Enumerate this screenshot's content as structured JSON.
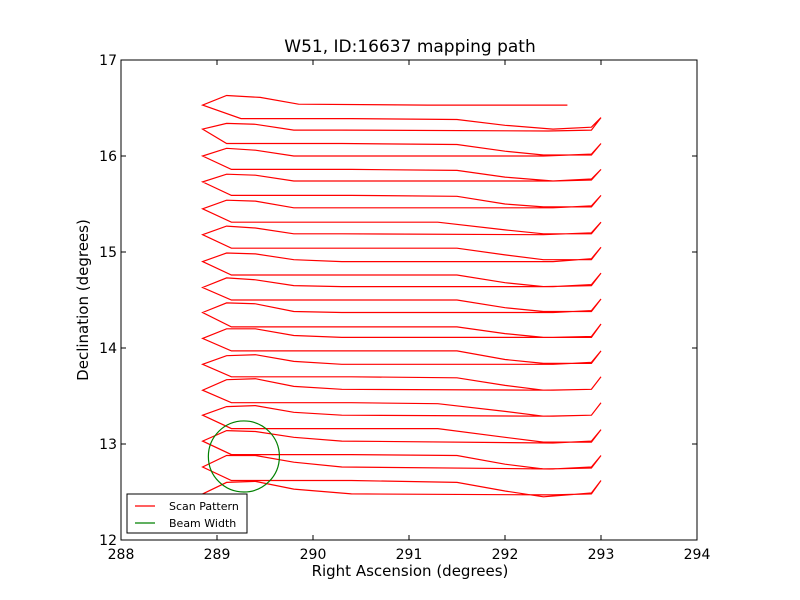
{
  "chart_data": {
    "type": "line",
    "title": "W51, ID:16637 mapping path",
    "xlabel": "Right Ascension (degrees)",
    "ylabel": "Declination (degrees)",
    "xlim": [
      288,
      294
    ],
    "ylim": [
      12,
      17
    ],
    "xticks": [
      288,
      289,
      290,
      291,
      292,
      293,
      294
    ],
    "yticks": [
      12,
      13,
      14,
      15,
      16,
      17
    ],
    "xtick_labels": [
      "288",
      "289",
      "290",
      "291",
      "292",
      "293",
      "294"
    ],
    "ytick_labels": [
      "12",
      "13",
      "14",
      "15",
      "16",
      "17"
    ],
    "grid": false,
    "legend": {
      "placement": "lower-left",
      "entries": [
        {
          "label": "Scan Pattern",
          "color": "#ff0000"
        },
        {
          "label": "Beam Width",
          "color": "#008000"
        }
      ]
    },
    "series": [
      {
        "name": "Scan Pattern",
        "color": "#ff0000",
        "points": [
          [
            292.65,
            16.53
          ],
          [
            291.2,
            16.53
          ],
          [
            289.85,
            16.54
          ],
          [
            289.45,
            16.61
          ],
          [
            289.1,
            16.63
          ],
          [
            288.85,
            16.53
          ],
          [
            289.25,
            16.39
          ],
          [
            290.4,
            16.39
          ],
          [
            291.5,
            16.38
          ],
          [
            292.0,
            16.32
          ],
          [
            292.5,
            16.28
          ],
          [
            292.9,
            16.3
          ],
          [
            293.0,
            16.4
          ],
          [
            292.9,
            16.27
          ],
          [
            292.45,
            16.26
          ],
          [
            290.3,
            16.27
          ],
          [
            289.8,
            16.27
          ],
          [
            289.4,
            16.33
          ],
          [
            289.1,
            16.34
          ],
          [
            288.85,
            16.28
          ],
          [
            289.1,
            16.13
          ],
          [
            290.3,
            16.13
          ],
          [
            291.5,
            16.12
          ],
          [
            292.0,
            16.05
          ],
          [
            292.4,
            16.01
          ],
          [
            292.9,
            16.01
          ],
          [
            293.0,
            16.13
          ],
          [
            292.9,
            16.02
          ],
          [
            292.4,
            16.0
          ],
          [
            290.2,
            16.0
          ],
          [
            289.8,
            16.0
          ],
          [
            289.4,
            16.06
          ],
          [
            289.1,
            16.08
          ],
          [
            288.85,
            16.0
          ],
          [
            289.15,
            15.86
          ],
          [
            290.4,
            15.86
          ],
          [
            291.5,
            15.85
          ],
          [
            292.0,
            15.78
          ],
          [
            292.5,
            15.74
          ],
          [
            292.9,
            15.75
          ],
          [
            293.0,
            15.86
          ],
          [
            292.9,
            15.76
          ],
          [
            292.5,
            15.74
          ],
          [
            290.3,
            15.74
          ],
          [
            289.8,
            15.74
          ],
          [
            289.4,
            15.8
          ],
          [
            289.1,
            15.81
          ],
          [
            288.85,
            15.73
          ],
          [
            289.15,
            15.59
          ],
          [
            290.4,
            15.59
          ],
          [
            291.5,
            15.58
          ],
          [
            292.0,
            15.5
          ],
          [
            292.4,
            15.47
          ],
          [
            292.9,
            15.47
          ],
          [
            293.0,
            15.59
          ],
          [
            292.9,
            15.48
          ],
          [
            292.5,
            15.46
          ],
          [
            290.3,
            15.46
          ],
          [
            289.8,
            15.46
          ],
          [
            289.4,
            15.53
          ],
          [
            289.1,
            15.54
          ],
          [
            288.85,
            15.45
          ],
          [
            289.15,
            15.31
          ],
          [
            290.4,
            15.31
          ],
          [
            291.3,
            15.31
          ],
          [
            292.0,
            15.23
          ],
          [
            292.4,
            15.19
          ],
          [
            292.9,
            15.19
          ],
          [
            293.0,
            15.31
          ],
          [
            292.9,
            15.2
          ],
          [
            292.4,
            15.18
          ],
          [
            290.3,
            15.19
          ],
          [
            289.8,
            15.19
          ],
          [
            289.4,
            15.25
          ],
          [
            289.1,
            15.27
          ],
          [
            288.85,
            15.18
          ],
          [
            289.15,
            15.04
          ],
          [
            290.4,
            15.04
          ],
          [
            291.5,
            15.04
          ],
          [
            292.0,
            14.97
          ],
          [
            292.4,
            14.92
          ],
          [
            292.9,
            14.92
          ],
          [
            293.0,
            15.05
          ],
          [
            292.9,
            14.93
          ],
          [
            292.5,
            14.9
          ],
          [
            290.3,
            14.9
          ],
          [
            289.8,
            14.92
          ],
          [
            289.4,
            14.98
          ],
          [
            289.1,
            14.99
          ],
          [
            288.85,
            14.9
          ],
          [
            289.15,
            14.76
          ],
          [
            290.4,
            14.76
          ],
          [
            291.5,
            14.76
          ],
          [
            292.0,
            14.68
          ],
          [
            292.4,
            14.64
          ],
          [
            292.9,
            14.65
          ],
          [
            293.0,
            14.78
          ],
          [
            292.9,
            14.66
          ],
          [
            292.5,
            14.64
          ],
          [
            290.3,
            14.64
          ],
          [
            289.8,
            14.65
          ],
          [
            289.4,
            14.71
          ],
          [
            289.1,
            14.73
          ],
          [
            288.85,
            14.63
          ],
          [
            289.15,
            14.5
          ],
          [
            290.4,
            14.5
          ],
          [
            291.5,
            14.5
          ],
          [
            292.0,
            14.42
          ],
          [
            292.4,
            14.38
          ],
          [
            292.9,
            14.38
          ],
          [
            293.0,
            14.51
          ],
          [
            292.9,
            14.39
          ],
          [
            292.5,
            14.37
          ],
          [
            290.3,
            14.37
          ],
          [
            289.8,
            14.38
          ],
          [
            289.4,
            14.46
          ],
          [
            289.1,
            14.47
          ],
          [
            288.85,
            14.37
          ],
          [
            289.15,
            14.22
          ],
          [
            290.4,
            14.22
          ],
          [
            291.5,
            14.22
          ],
          [
            292.0,
            14.15
          ],
          [
            292.4,
            14.11
          ],
          [
            292.9,
            14.11
          ],
          [
            293.0,
            14.25
          ],
          [
            292.9,
            14.12
          ],
          [
            292.5,
            14.11
          ],
          [
            290.3,
            14.11
          ],
          [
            289.8,
            14.13
          ],
          [
            289.4,
            14.2
          ],
          [
            289.1,
            14.2
          ],
          [
            288.85,
            14.1
          ],
          [
            289.15,
            13.97
          ],
          [
            290.4,
            13.97
          ],
          [
            291.5,
            13.97
          ],
          [
            292.0,
            13.88
          ],
          [
            292.4,
            13.84
          ],
          [
            292.9,
            13.84
          ],
          [
            293.0,
            13.97
          ],
          [
            292.9,
            13.85
          ],
          [
            292.5,
            13.83
          ],
          [
            290.3,
            13.83
          ],
          [
            289.8,
            13.86
          ],
          [
            289.4,
            13.93
          ],
          [
            289.1,
            13.92
          ],
          [
            288.85,
            13.83
          ],
          [
            289.15,
            13.7
          ],
          [
            290.4,
            13.7
          ],
          [
            291.5,
            13.69
          ],
          [
            292.0,
            13.61
          ],
          [
            292.4,
            13.56
          ],
          [
            292.9,
            13.57
          ],
          [
            293.0,
            13.7
          ],
          [
            292.9,
            13.57
          ],
          [
            292.5,
            13.56
          ],
          [
            290.3,
            13.57
          ],
          [
            289.8,
            13.6
          ],
          [
            289.4,
            13.68
          ],
          [
            289.1,
            13.67
          ],
          [
            288.85,
            13.56
          ],
          [
            289.15,
            13.43
          ],
          [
            290.4,
            13.43
          ],
          [
            291.3,
            13.42
          ],
          [
            292.0,
            13.34
          ],
          [
            292.4,
            13.29
          ],
          [
            292.9,
            13.3
          ],
          [
            293.0,
            13.43
          ],
          [
            292.9,
            13.3
          ],
          [
            292.5,
            13.29
          ],
          [
            290.3,
            13.3
          ],
          [
            289.8,
            13.33
          ],
          [
            289.4,
            13.4
          ],
          [
            289.1,
            13.39
          ],
          [
            288.85,
            13.3
          ],
          [
            289.15,
            13.16
          ],
          [
            290.4,
            13.16
          ],
          [
            291.3,
            13.16
          ],
          [
            292.0,
            13.07
          ],
          [
            292.4,
            13.02
          ],
          [
            292.9,
            13.02
          ],
          [
            293.0,
            13.15
          ],
          [
            292.9,
            13.03
          ],
          [
            292.5,
            13.01
          ],
          [
            290.3,
            13.03
          ],
          [
            289.8,
            13.07
          ],
          [
            289.4,
            13.13
          ],
          [
            289.1,
            13.14
          ],
          [
            288.85,
            13.03
          ],
          [
            289.15,
            12.89
          ],
          [
            290.4,
            12.89
          ],
          [
            291.5,
            12.88
          ],
          [
            292.0,
            12.79
          ],
          [
            292.4,
            12.74
          ],
          [
            292.9,
            12.75
          ],
          [
            293.0,
            12.88
          ],
          [
            292.9,
            12.76
          ],
          [
            292.5,
            12.74
          ],
          [
            290.3,
            12.76
          ],
          [
            289.8,
            12.81
          ],
          [
            289.4,
            12.88
          ],
          [
            289.1,
            12.88
          ],
          [
            288.85,
            12.76
          ],
          [
            289.15,
            12.62
          ],
          [
            290.4,
            12.62
          ],
          [
            291.5,
            12.6
          ],
          [
            292.0,
            12.51
          ],
          [
            292.4,
            12.45
          ],
          [
            292.9,
            12.49
          ],
          [
            293.0,
            12.62
          ],
          [
            292.9,
            12.48
          ],
          [
            292.5,
            12.47
          ],
          [
            290.4,
            12.48
          ],
          [
            289.8,
            12.53
          ],
          [
            289.4,
            12.61
          ],
          [
            289.1,
            12.6
          ],
          [
            288.85,
            12.48
          ]
        ]
      },
      {
        "name": "Beam Width",
        "color": "#008000",
        "circle": {
          "cx": 289.28,
          "cy": 12.87,
          "r": 0.37
        }
      }
    ]
  }
}
